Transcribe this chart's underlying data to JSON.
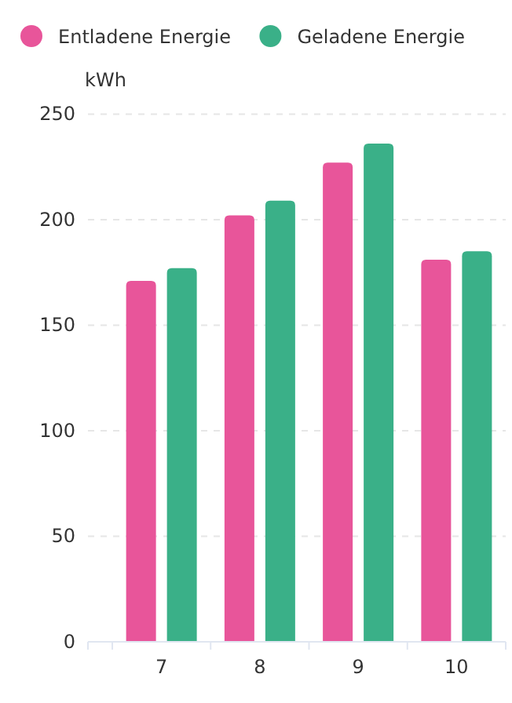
{
  "chart_data": {
    "type": "bar",
    "ylabel": "kWh",
    "categories": [
      "7",
      "8",
      "9",
      "10"
    ],
    "series": [
      {
        "name": "Entladene Energie",
        "color": "#e8559a",
        "values": [
          171,
          202,
          227,
          181
        ]
      },
      {
        "name": "Geladene Energie",
        "color": "#3ab088",
        "values": [
          177,
          209,
          236,
          185
        ]
      }
    ],
    "ylim": [
      0,
      250
    ],
    "yticks": [
      0,
      50,
      100,
      150,
      200,
      250
    ],
    "grid": "y",
    "legend": "top left"
  }
}
